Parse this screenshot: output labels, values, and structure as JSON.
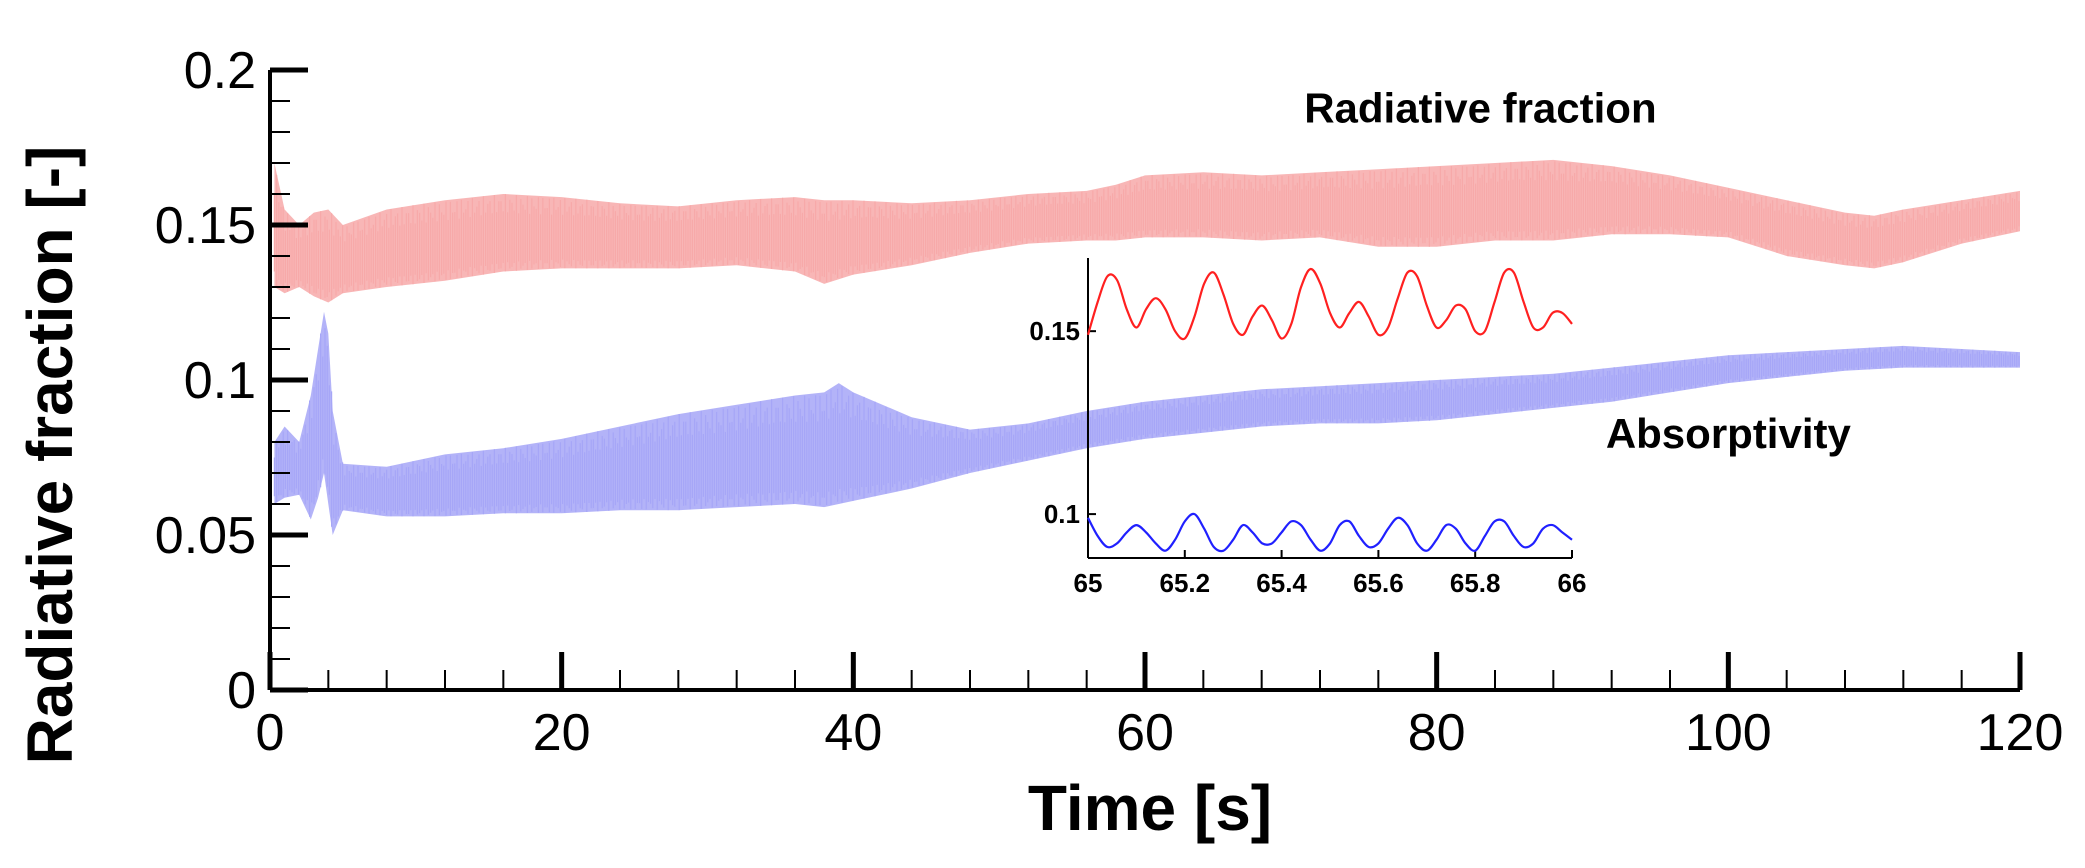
{
  "chart_data": [
    {
      "id": "main",
      "type": "line",
      "xlabel": "Time [s]",
      "ylabel": "Radiative fraction [-]",
      "xlim": [
        0,
        120
      ],
      "ylim": [
        0,
        0.2
      ],
      "xticks": [
        0,
        20,
        40,
        60,
        80,
        100,
        120
      ],
      "xtick_labels": [
        "0",
        "20",
        "40",
        "60",
        "80",
        "100",
        "120"
      ],
      "yticks": [
        0,
        0.05,
        0.1,
        0.15,
        0.2
      ],
      "ytick_labels": [
        "0",
        "0.05",
        "0.1",
        "0.15",
        "0.2"
      ],
      "grid": false,
      "annotations": [
        {
          "text": "Radiative fraction",
          "x": 83,
          "y": 0.183
        },
        {
          "text": "Absorptivity",
          "x": 100,
          "y": 0.078
        }
      ],
      "series": [
        {
          "name": "Radiative fraction",
          "color": "#f7a9a9",
          "x": [
            0.3,
            1,
            2,
            3,
            4,
            5,
            8,
            12,
            16,
            20,
            24,
            28,
            32,
            36,
            38,
            40,
            44,
            48,
            52,
            56,
            58,
            60,
            64,
            68,
            72,
            76,
            80,
            84,
            88,
            92,
            96,
            100,
            104,
            108,
            110,
            112,
            116,
            120
          ],
          "lower": [
            0.13,
            0.128,
            0.13,
            0.127,
            0.125,
            0.128,
            0.13,
            0.132,
            0.135,
            0.136,
            0.136,
            0.136,
            0.137,
            0.135,
            0.131,
            0.134,
            0.137,
            0.141,
            0.144,
            0.145,
            0.145,
            0.146,
            0.146,
            0.145,
            0.146,
            0.143,
            0.143,
            0.145,
            0.145,
            0.147,
            0.147,
            0.146,
            0.14,
            0.137,
            0.136,
            0.138,
            0.144,
            0.148
          ],
          "upper": [
            0.17,
            0.155,
            0.15,
            0.154,
            0.155,
            0.15,
            0.155,
            0.158,
            0.16,
            0.159,
            0.157,
            0.156,
            0.158,
            0.159,
            0.158,
            0.158,
            0.157,
            0.158,
            0.16,
            0.161,
            0.163,
            0.166,
            0.167,
            0.166,
            0.167,
            0.168,
            0.169,
            0.17,
            0.171,
            0.169,
            0.166,
            0.162,
            0.158,
            0.154,
            0.153,
            0.155,
            0.158,
            0.161
          ]
        },
        {
          "name": "Absorptivity",
          "color": "#a6a6f7",
          "x": [
            0.3,
            1,
            2,
            2.8,
            3.3,
            3.7,
            4,
            4.3,
            5,
            8,
            12,
            16,
            20,
            24,
            28,
            32,
            36,
            38,
            39,
            40,
            44,
            48,
            52,
            56,
            60,
            64,
            68,
            72,
            76,
            80,
            84,
            88,
            92,
            96,
            100,
            104,
            108,
            112,
            116,
            120
          ],
          "lower": [
            0.06,
            0.062,
            0.063,
            0.055,
            0.062,
            0.07,
            0.06,
            0.05,
            0.058,
            0.056,
            0.056,
            0.057,
            0.057,
            0.058,
            0.058,
            0.059,
            0.06,
            0.059,
            0.06,
            0.061,
            0.065,
            0.07,
            0.074,
            0.078,
            0.081,
            0.083,
            0.085,
            0.086,
            0.086,
            0.087,
            0.089,
            0.091,
            0.093,
            0.096,
            0.099,
            0.101,
            0.103,
            0.104,
            0.104,
            0.104
          ],
          "upper": [
            0.08,
            0.085,
            0.08,
            0.095,
            0.11,
            0.122,
            0.115,
            0.09,
            0.073,
            0.072,
            0.076,
            0.078,
            0.081,
            0.085,
            0.089,
            0.092,
            0.095,
            0.096,
            0.099,
            0.096,
            0.088,
            0.084,
            0.086,
            0.09,
            0.093,
            0.095,
            0.097,
            0.098,
            0.099,
            0.1,
            0.101,
            0.102,
            0.104,
            0.106,
            0.108,
            0.109,
            0.11,
            0.111,
            0.11,
            0.109
          ]
        }
      ]
    },
    {
      "id": "inset",
      "type": "line",
      "xlim": [
        65,
        66
      ],
      "ylim": [
        0.088,
        0.17
      ],
      "xticks": [
        65,
        65.2,
        65.4,
        65.6,
        65.8,
        66
      ],
      "xtick_labels": [
        "65",
        "65.2",
        "65.4",
        "65.6",
        "65.8",
        "66"
      ],
      "yticks": [
        0.1,
        0.15
      ],
      "ytick_labels": [
        "0.1",
        "0.15"
      ],
      "series": [
        {
          "name": "Radiative fraction",
          "color": "#ff2020",
          "x": [
            65.0,
            65.02,
            65.04,
            65.06,
            65.08,
            65.1,
            65.12,
            65.14,
            65.16,
            65.18,
            65.2,
            65.22,
            65.24,
            65.26,
            65.28,
            65.3,
            65.32,
            65.34,
            65.36,
            65.38,
            65.4,
            65.42,
            65.44,
            65.46,
            65.48,
            65.5,
            65.52,
            65.54,
            65.56,
            65.58,
            65.6,
            65.62,
            65.64,
            65.66,
            65.68,
            65.7,
            65.72,
            65.74,
            65.76,
            65.78,
            65.8,
            65.82,
            65.84,
            65.86,
            65.88,
            65.9,
            65.92,
            65.94,
            65.96,
            65.98,
            66.0
          ],
          "y": [
            0.149,
            0.158,
            0.165,
            0.164,
            0.156,
            0.151,
            0.156,
            0.159,
            0.156,
            0.15,
            0.148,
            0.154,
            0.163,
            0.166,
            0.16,
            0.152,
            0.149,
            0.154,
            0.157,
            0.153,
            0.148,
            0.152,
            0.162,
            0.167,
            0.163,
            0.155,
            0.151,
            0.155,
            0.158,
            0.154,
            0.149,
            0.151,
            0.159,
            0.166,
            0.165,
            0.157,
            0.151,
            0.153,
            0.157,
            0.156,
            0.15,
            0.15,
            0.158,
            0.166,
            0.166,
            0.158,
            0.151,
            0.151,
            0.155,
            0.155,
            0.152
          ]
        },
        {
          "name": "Absorptivity",
          "color": "#2020ff",
          "x": [
            65.0,
            65.02,
            65.04,
            65.06,
            65.08,
            65.1,
            65.12,
            65.14,
            65.16,
            65.18,
            65.2,
            65.22,
            65.24,
            65.26,
            65.28,
            65.3,
            65.32,
            65.34,
            65.36,
            65.38,
            65.4,
            65.42,
            65.44,
            65.46,
            65.48,
            65.5,
            65.52,
            65.54,
            65.56,
            65.58,
            65.6,
            65.62,
            65.64,
            65.66,
            65.68,
            65.7,
            65.72,
            65.74,
            65.76,
            65.78,
            65.8,
            65.82,
            65.84,
            65.86,
            65.88,
            65.9,
            65.92,
            65.94,
            65.96,
            65.98,
            66.0
          ],
          "y": [
            0.099,
            0.094,
            0.091,
            0.092,
            0.095,
            0.097,
            0.095,
            0.092,
            0.09,
            0.093,
            0.098,
            0.1,
            0.096,
            0.091,
            0.09,
            0.093,
            0.097,
            0.095,
            0.092,
            0.092,
            0.095,
            0.098,
            0.097,
            0.093,
            0.09,
            0.092,
            0.097,
            0.098,
            0.094,
            0.091,
            0.092,
            0.096,
            0.099,
            0.097,
            0.092,
            0.09,
            0.093,
            0.097,
            0.096,
            0.092,
            0.09,
            0.094,
            0.098,
            0.098,
            0.094,
            0.091,
            0.092,
            0.096,
            0.097,
            0.095,
            0.093
          ]
        }
      ]
    }
  ]
}
